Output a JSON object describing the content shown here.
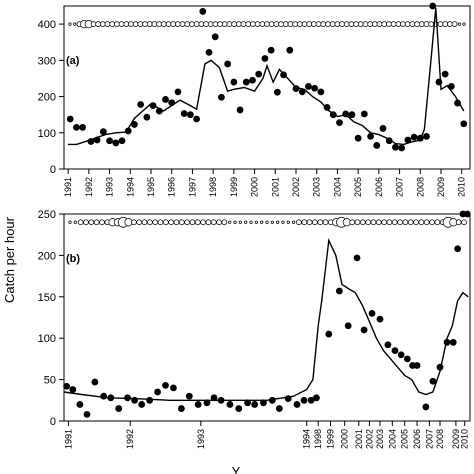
{
  "ylabel": "Catch per hour",
  "xlabel": "Y",
  "chart_data": [
    {
      "type": "line",
      "panel_label": "(a)",
      "ylim": [
        0,
        450
      ],
      "yticks": [
        0,
        100,
        200,
        300,
        400
      ],
      "xlim": [
        1990.8,
        2010.4
      ],
      "xticks": [
        1991,
        1992,
        1993,
        1994,
        1995,
        1996,
        1997,
        1998,
        1999,
        2000,
        2001,
        2002,
        2003,
        2004,
        2005,
        2006,
        2007,
        2008,
        2009,
        2010
      ],
      "points": [
        [
          1991.1,
          138
        ],
        [
          1991.4,
          115
        ],
        [
          1991.7,
          115
        ],
        [
          1992.1,
          76
        ],
        [
          1992.4,
          80
        ],
        [
          1992.7,
          103
        ],
        [
          1993.0,
          78
        ],
        [
          1993.3,
          72
        ],
        [
          1993.6,
          78
        ],
        [
          1993.9,
          105
        ],
        [
          1994.2,
          123
        ],
        [
          1994.5,
          178
        ],
        [
          1994.8,
          143
        ],
        [
          1995.1,
          175
        ],
        [
          1995.4,
          160
        ],
        [
          1995.7,
          192
        ],
        [
          1996.0,
          183
        ],
        [
          1996.3,
          213
        ],
        [
          1996.6,
          153
        ],
        [
          1996.9,
          150
        ],
        [
          1997.2,
          138
        ],
        [
          1997.5,
          435
        ],
        [
          1997.8,
          322
        ],
        [
          1998.1,
          365
        ],
        [
          1998.4,
          198
        ],
        [
          1998.7,
          290
        ],
        [
          1999.0,
          240
        ],
        [
          1999.3,
          163
        ],
        [
          1999.6,
          240
        ],
        [
          1999.9,
          245
        ],
        [
          2000.2,
          262
        ],
        [
          2000.5,
          305
        ],
        [
          2000.8,
          328
        ],
        [
          2001.1,
          212
        ],
        [
          2001.4,
          260
        ],
        [
          2001.7,
          328
        ],
        [
          2002.0,
          222
        ],
        [
          2002.3,
          213
        ],
        [
          2002.6,
          228
        ],
        [
          2002.9,
          223
        ],
        [
          2003.2,
          213
        ],
        [
          2003.5,
          170
        ],
        [
          2003.8,
          150
        ],
        [
          2004.1,
          128
        ],
        [
          2004.4,
          152
        ],
        [
          2004.7,
          150
        ],
        [
          2005.0,
          85
        ],
        [
          2005.3,
          152
        ],
        [
          2005.6,
          90
        ],
        [
          2005.9,
          65
        ],
        [
          2006.2,
          112
        ],
        [
          2006.5,
          78
        ],
        [
          2006.8,
          60
        ],
        [
          2007.1,
          58
        ],
        [
          2007.4,
          80
        ],
        [
          2007.7,
          88
        ],
        [
          2008.0,
          85
        ],
        [
          2008.3,
          90
        ],
        [
          2008.6,
          450
        ],
        [
          2008.9,
          240
        ],
        [
          2009.2,
          262
        ],
        [
          2009.5,
          228
        ],
        [
          2009.8,
          182
        ],
        [
          2010.1,
          125
        ]
      ],
      "line": [
        [
          1991.0,
          68
        ],
        [
          1991.4,
          68
        ],
        [
          1991.8,
          75
        ],
        [
          1992.3,
          85
        ],
        [
          1992.8,
          95
        ],
        [
          1993.3,
          100
        ],
        [
          1993.8,
          102
        ],
        [
          1994.2,
          140
        ],
        [
          1994.6,
          160
        ],
        [
          1995.0,
          180
        ],
        [
          1995.3,
          170
        ],
        [
          1995.6,
          160
        ],
        [
          1996.0,
          175
        ],
        [
          1996.4,
          190
        ],
        [
          1996.8,
          178
        ],
        [
          1997.2,
          165
        ],
        [
          1997.6,
          290
        ],
        [
          1997.9,
          300
        ],
        [
          1998.3,
          280
        ],
        [
          1998.7,
          215
        ],
        [
          1999.0,
          220
        ],
        [
          1999.5,
          225
        ],
        [
          2000.0,
          215
        ],
        [
          2000.4,
          250
        ],
        [
          2000.6,
          285
        ],
        [
          2000.9,
          240
        ],
        [
          2001.2,
          275
        ],
        [
          2001.6,
          250
        ],
        [
          2002.0,
          225
        ],
        [
          2002.4,
          220
        ],
        [
          2002.8,
          200
        ],
        [
          2003.2,
          185
        ],
        [
          2003.6,
          160
        ],
        [
          2004.0,
          145
        ],
        [
          2004.4,
          150
        ],
        [
          2004.8,
          130
        ],
        [
          2005.2,
          120
        ],
        [
          2005.6,
          100
        ],
        [
          2006.0,
          95
        ],
        [
          2006.4,
          85
        ],
        [
          2006.8,
          70
        ],
        [
          2007.2,
          68
        ],
        [
          2007.6,
          75
        ],
        [
          2008.0,
          80
        ],
        [
          2008.2,
          110
        ],
        [
          2008.5,
          290
        ],
        [
          2008.75,
          445
        ],
        [
          2009.0,
          220
        ],
        [
          2009.3,
          230
        ],
        [
          2009.7,
          200
        ],
        [
          2010.1,
          160
        ]
      ],
      "annotation_row": {
        "y": 400,
        "sizes": [
          1,
          1,
          2,
          3,
          3,
          2,
          2,
          2,
          2,
          2,
          2,
          2,
          2,
          2,
          2,
          2,
          2,
          2,
          2,
          2,
          2,
          2,
          2,
          2,
          2,
          2,
          2,
          2,
          2,
          2,
          2,
          2,
          2,
          2,
          2,
          2,
          2,
          2,
          2,
          2,
          2,
          2,
          2,
          2,
          2,
          2,
          2,
          2,
          2,
          2,
          2,
          2,
          2,
          2,
          2,
          2,
          2,
          2,
          2,
          2,
          2,
          2,
          2,
          2,
          2,
          2,
          2,
          2,
          2,
          2,
          2,
          2,
          2,
          2,
          2,
          2,
          2,
          2,
          2,
          2,
          2,
          2,
          2,
          1,
          1
        ]
      }
    },
    {
      "type": "line",
      "panel_label": "(b)",
      "ylim": [
        0,
        250
      ],
      "yticks": [
        0,
        50,
        100,
        150,
        200,
        250
      ],
      "xlim": [
        0,
        46
      ],
      "xticks": [
        {
          "label": "1991",
          "x": 0.5
        },
        {
          "label": "1992",
          "x": 7.5
        },
        {
          "label": "1993",
          "x": 15.5
        },
        {
          "label": "1994",
          "x": 27.5
        },
        {
          "label": "1998",
          "x": 28.8
        },
        {
          "label": "1999",
          "x": 30.2
        },
        {
          "label": "2000",
          "x": 31.8
        },
        {
          "label": "2001",
          "x": 33.4
        },
        {
          "label": "2002",
          "x": 34.6
        },
        {
          "label": "2003",
          "x": 35.8
        },
        {
          "label": "2004",
          "x": 37.2
        },
        {
          "label": "2005",
          "x": 38.6
        },
        {
          "label": "2006",
          "x": 40.0
        },
        {
          "label": "2007",
          "x": 41.4
        },
        {
          "label": "2008",
          "x": 42.6
        },
        {
          "label": "2009",
          "x": 44.4
        },
        {
          "label": "2010",
          "x": 45.4
        }
      ],
      "points": [
        [
          0.3,
          42
        ],
        [
          1.0,
          38
        ],
        [
          1.8,
          20
        ],
        [
          2.6,
          8
        ],
        [
          3.5,
          47
        ],
        [
          4.5,
          30
        ],
        [
          5.3,
          28
        ],
        [
          6.2,
          15
        ],
        [
          7.2,
          28
        ],
        [
          8.0,
          25
        ],
        [
          8.8,
          20
        ],
        [
          9.7,
          25
        ],
        [
          10.6,
          35
        ],
        [
          11.5,
          43
        ],
        [
          12.4,
          40
        ],
        [
          13.3,
          15
        ],
        [
          14.2,
          30
        ],
        [
          15.2,
          20
        ],
        [
          16.2,
          22
        ],
        [
          17.0,
          28
        ],
        [
          17.8,
          25
        ],
        [
          18.8,
          20
        ],
        [
          19.8,
          15
        ],
        [
          20.8,
          22
        ],
        [
          21.6,
          20
        ],
        [
          22.6,
          22
        ],
        [
          23.6,
          25
        ],
        [
          24.4,
          15
        ],
        [
          25.4,
          27
        ],
        [
          26.4,
          20
        ],
        [
          27.2,
          25
        ],
        [
          28.0,
          25
        ],
        [
          28.6,
          28
        ],
        [
          30.0,
          105
        ],
        [
          31.2,
          157
        ],
        [
          32.2,
          115
        ],
        [
          33.2,
          197
        ],
        [
          34.0,
          110
        ],
        [
          34.9,
          130
        ],
        [
          35.8,
          123
        ],
        [
          36.7,
          92
        ],
        [
          37.5,
          85
        ],
        [
          38.2,
          80
        ],
        [
          38.9,
          75
        ],
        [
          39.5,
          67
        ],
        [
          40.0,
          67
        ],
        [
          41.0,
          17
        ],
        [
          41.8,
          48
        ],
        [
          42.6,
          65
        ],
        [
          43.4,
          95
        ],
        [
          44.1,
          95
        ],
        [
          44.6,
          208
        ],
        [
          45.2,
          250
        ],
        [
          45.7,
          250
        ]
      ],
      "line": [
        [
          0.0,
          35
        ],
        [
          2.0,
          32
        ],
        [
          5.0,
          28
        ],
        [
          8.0,
          27
        ],
        [
          12.0,
          25
        ],
        [
          16.0,
          25
        ],
        [
          20.0,
          25
        ],
        [
          23.0,
          25
        ],
        [
          26.0,
          30
        ],
        [
          27.5,
          38
        ],
        [
          28.2,
          50
        ],
        [
          28.8,
          115
        ],
        [
          29.2,
          145
        ],
        [
          30.0,
          218
        ],
        [
          30.8,
          200
        ],
        [
          31.5,
          165
        ],
        [
          32.2,
          160
        ],
        [
          33.0,
          155
        ],
        [
          33.8,
          140
        ],
        [
          34.6,
          120
        ],
        [
          35.4,
          100
        ],
        [
          36.2,
          85
        ],
        [
          37.0,
          75
        ],
        [
          37.8,
          65
        ],
        [
          38.6,
          55
        ],
        [
          39.4,
          50
        ],
        [
          40.2,
          35
        ],
        [
          41.0,
          32
        ],
        [
          41.8,
          35
        ],
        [
          42.6,
          60
        ],
        [
          43.4,
          100
        ],
        [
          44.0,
          115
        ],
        [
          44.6,
          145
        ],
        [
          45.2,
          155
        ],
        [
          45.8,
          150
        ]
      ],
      "annotation_row": {
        "y": 240,
        "sizes": [
          1,
          1,
          2,
          2,
          2,
          2,
          2,
          2,
          3,
          3,
          4,
          3,
          2,
          2,
          2,
          2,
          2,
          2,
          2,
          2,
          2,
          2,
          2,
          2,
          2,
          2,
          2,
          2,
          2,
          2,
          1,
          1,
          1,
          1,
          1,
          1,
          1,
          1,
          1,
          1,
          1,
          1,
          1,
          2,
          2,
          2,
          2,
          2,
          2,
          2,
          3,
          4,
          3,
          2,
          2,
          2,
          2,
          2,
          2,
          2,
          2,
          2,
          2,
          2,
          2,
          2,
          2,
          2,
          2,
          2,
          2,
          4,
          3,
          2,
          2
        ]
      }
    }
  ]
}
